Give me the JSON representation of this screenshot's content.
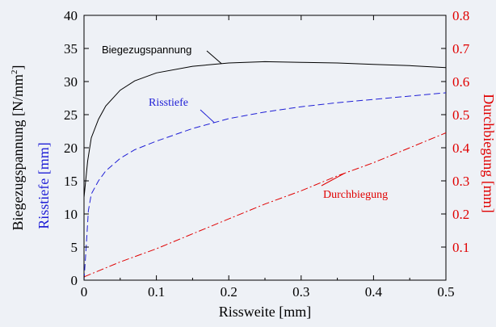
{
  "chart_data": {
    "type": "line",
    "xlabel": "Rissweite [mm]",
    "ylabel_left_main": "Biegezugspannung [N/mm",
    "ylabel_left_sup": "2",
    "ylabel_left_close": "]",
    "ylabel_left_secondary": "Risstiefe [mm]",
    "ylabel_right": "Durchbiegung [mm]",
    "xlim": [
      0,
      0.5
    ],
    "ylim_left": [
      0,
      40
    ],
    "ylim_right": [
      0,
      0.8
    ],
    "x_ticks": [
      "0",
      "0.1",
      "0.2",
      "0.3",
      "0.4",
      "0.5"
    ],
    "y_left_ticks": [
      "0",
      "5",
      "10",
      "15",
      "20",
      "25",
      "30",
      "35",
      "40"
    ],
    "y_right_ticks": [
      "0.1",
      "0.2",
      "0.3",
      "0.4",
      "0.5",
      "0.6",
      "0.7",
      "0.8"
    ],
    "grid": false,
    "colors": {
      "stress": "#000000",
      "depth": "#1f1fd6",
      "deflection": "#e00000",
      "background": "#eef1f6"
    },
    "series": [
      {
        "name": "Biegezugspannung",
        "axis": "left",
        "style": "solid",
        "x": [
          0,
          0.005,
          0.01,
          0.02,
          0.03,
          0.05,
          0.07,
          0.1,
          0.15,
          0.2,
          0.25,
          0.3,
          0.35,
          0.4,
          0.45,
          0.5
        ],
        "y": [
          12.5,
          18.0,
          21.5,
          24.3,
          26.3,
          28.7,
          30.1,
          31.3,
          32.3,
          32.8,
          33.0,
          32.9,
          32.8,
          32.6,
          32.4,
          32.1
        ]
      },
      {
        "name": "Risstiefe",
        "axis": "left",
        "style": "dashed",
        "x": [
          0,
          0.003,
          0.006,
          0.01,
          0.02,
          0.03,
          0.05,
          0.07,
          0.1,
          0.15,
          0.2,
          0.25,
          0.3,
          0.35,
          0.4,
          0.45,
          0.5
        ],
        "y": [
          0,
          5.0,
          10.5,
          13.0,
          15.0,
          16.5,
          18.4,
          19.7,
          21.0,
          22.9,
          24.4,
          25.4,
          26.2,
          26.8,
          27.3,
          27.8,
          28.3
        ]
      },
      {
        "name": "Durchbiegung",
        "axis": "right",
        "style": "dashdot",
        "x": [
          0,
          0.05,
          0.1,
          0.15,
          0.2,
          0.25,
          0.3,
          0.35,
          0.4,
          0.45,
          0.5
        ],
        "y": [
          0.01,
          0.055,
          0.095,
          0.14,
          0.185,
          0.23,
          0.27,
          0.315,
          0.355,
          0.4,
          0.445
        ]
      }
    ],
    "annotations": [
      {
        "text": "Biegezugspannung",
        "series": "Biegezugspannung",
        "at_x": 0.19
      },
      {
        "text": "Risstiefe",
        "series": "Risstiefe",
        "at_x": 0.18
      },
      {
        "text": "Durchbiegung",
        "series": "Durchbiegung",
        "at_x": 0.36
      }
    ]
  }
}
